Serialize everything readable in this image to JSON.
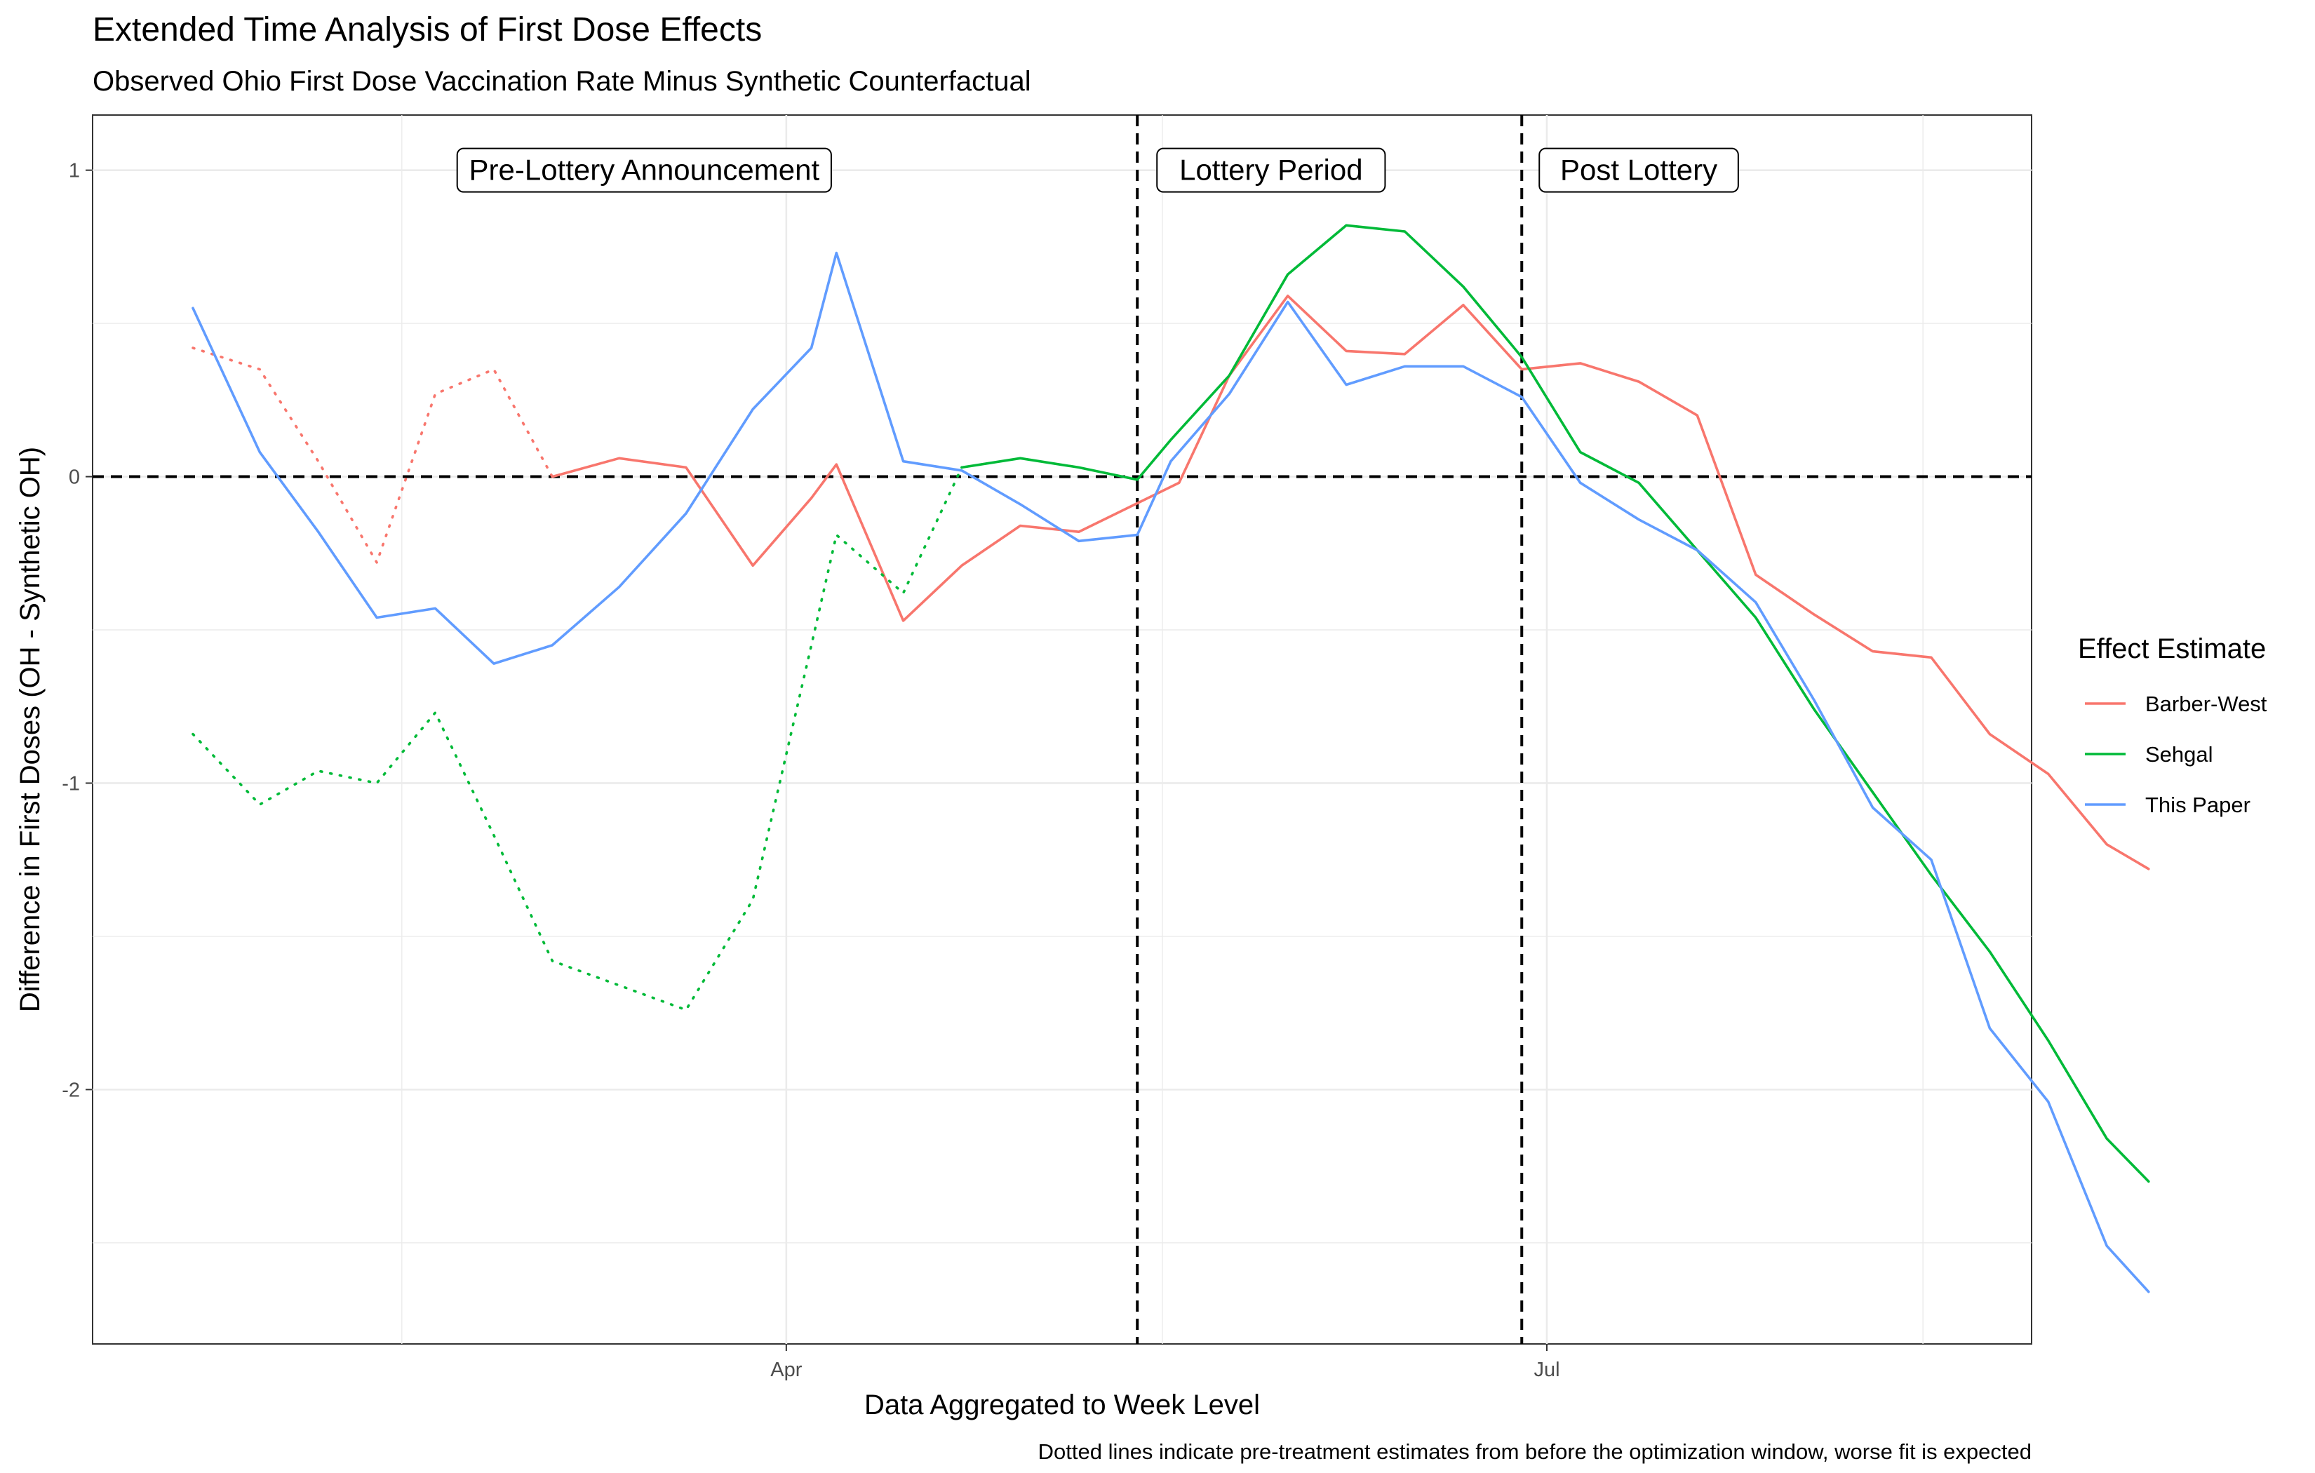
{
  "chart_data": {
    "type": "line",
    "title": "Extended Time Analysis of First Dose Effects",
    "subtitle": "Observed Ohio First Dose Vaccination Rate Minus Synthetic Counterfactual",
    "xlabel": "Data Aggregated to Week Level",
    "ylabel": "Difference in First Doses (OH - Synthetic OH)",
    "caption": "Dotted lines indicate pre-treatment estimates from before the optimization window, worse fit is expected",
    "x_ticks": [
      "Apr",
      "Jul"
    ],
    "y_ticks": [
      "1",
      "0",
      "-1",
      "-2"
    ],
    "ylim": [
      -2.83,
      1.18
    ],
    "xlim": [
      "2021-01-08",
      "2021-08-28"
    ],
    "grid": true,
    "legend": {
      "title": "Effect Estimate",
      "position": "right",
      "entries": [
        "Barber-West",
        "Sehgal",
        "This Paper"
      ]
    },
    "reference_lines": {
      "horizontal_y": 0,
      "vertical_dates": [
        "2021-05-13",
        "2021-06-28"
      ]
    },
    "period_labels": [
      "Pre-Lottery Announcement",
      "Lottery Period",
      "Post Lottery"
    ],
    "series": [
      {
        "name": "Barber-West",
        "color": "#F8766D",
        "segments": [
          {
            "style": "dotted",
            "points": [
              [
                "2021-01-20",
                0.42
              ],
              [
                "2021-01-28",
                0.35
              ],
              [
                "2021-02-04",
                0.05
              ],
              [
                "2021-02-11",
                -0.28
              ],
              [
                "2021-02-18",
                0.27
              ],
              [
                "2021-02-25",
                0.35
              ],
              [
                "2021-03-04",
                0.0
              ]
            ]
          },
          {
            "style": "solid",
            "points": [
              [
                "2021-03-04",
                0.0
              ],
              [
                "2021-03-12",
                0.06
              ],
              [
                "2021-03-20",
                0.03
              ],
              [
                "2021-03-28",
                -0.29
              ],
              [
                "2021-04-04",
                -0.07
              ],
              [
                "2021-04-07",
                0.04
              ],
              [
                "2021-04-15",
                -0.47
              ],
              [
                "2021-04-22",
                -0.29
              ],
              [
                "2021-04-29",
                -0.16
              ],
              [
                "2021-05-06",
                -0.18
              ],
              [
                "2021-05-18",
                -0.02
              ],
              [
                "2021-05-24",
                0.33
              ],
              [
                "2021-05-31",
                0.59
              ],
              [
                "2021-06-07",
                0.41
              ],
              [
                "2021-06-14",
                0.4
              ],
              [
                "2021-06-21",
                0.56
              ],
              [
                "2021-06-28",
                0.35
              ],
              [
                "2021-07-05",
                0.37
              ],
              [
                "2021-07-12",
                0.31
              ],
              [
                "2021-07-19",
                0.2
              ],
              [
                "2021-07-26",
                -0.32
              ],
              [
                "2021-08-02",
                -0.45
              ],
              [
                "2021-08-09",
                -0.57
              ],
              [
                "2021-08-16",
                -0.59
              ],
              [
                "2021-08-23",
                -0.84
              ],
              [
                "2021-08-30",
                -0.97
              ],
              [
                "2021-09-06",
                -1.2
              ],
              [
                "2021-09-11",
                -1.28
              ]
            ]
          }
        ]
      },
      {
        "name": "Sehgal",
        "color": "#00BA38",
        "segments": [
          {
            "style": "dotted",
            "points": [
              [
                "2021-01-20",
                -0.84
              ],
              [
                "2021-01-28",
                -1.07
              ],
              [
                "2021-02-04",
                -0.96
              ],
              [
                "2021-02-11",
                -1.0
              ],
              [
                "2021-02-18",
                -0.77
              ],
              [
                "2021-02-25",
                -1.17
              ],
              [
                "2021-03-04",
                -1.58
              ],
              [
                "2021-03-12",
                -1.66
              ],
              [
                "2021-03-20",
                -1.74
              ],
              [
                "2021-03-28",
                -1.38
              ],
              [
                "2021-04-04",
                -0.55
              ],
              [
                "2021-04-07",
                -0.19
              ],
              [
                "2021-04-15",
                -0.38
              ],
              [
                "2021-04-22",
                0.03
              ]
            ]
          },
          {
            "style": "solid",
            "points": [
              [
                "2021-04-22",
                0.03
              ],
              [
                "2021-04-29",
                0.06
              ],
              [
                "2021-05-06",
                0.03
              ],
              [
                "2021-05-13",
                -0.01
              ],
              [
                "2021-05-17",
                0.12
              ],
              [
                "2021-05-24",
                0.33
              ],
              [
                "2021-05-31",
                0.66
              ],
              [
                "2021-06-07",
                0.82
              ],
              [
                "2021-06-14",
                0.8
              ],
              [
                "2021-06-21",
                0.62
              ],
              [
                "2021-06-28",
                0.39
              ],
              [
                "2021-07-05",
                0.08
              ],
              [
                "2021-07-12",
                -0.02
              ],
              [
                "2021-07-19",
                -0.24
              ],
              [
                "2021-07-26",
                -0.46
              ],
              [
                "2021-08-02",
                -0.76
              ],
              [
                "2021-08-09",
                -1.03
              ],
              [
                "2021-08-16",
                -1.3
              ],
              [
                "2021-08-23",
                -1.55
              ],
              [
                "2021-08-30",
                -1.84
              ],
              [
                "2021-09-06",
                -2.16
              ],
              [
                "2021-09-11",
                -2.3
              ]
            ]
          }
        ]
      },
      {
        "name": "This Paper",
        "color": "#619CFF",
        "segments": [
          {
            "style": "solid",
            "points": [
              [
                "2021-01-20",
                0.55
              ],
              [
                "2021-01-28",
                0.08
              ],
              [
                "2021-02-04",
                -0.18
              ],
              [
                "2021-02-11",
                -0.46
              ],
              [
                "2021-02-18",
                -0.43
              ],
              [
                "2021-02-25",
                -0.61
              ],
              [
                "2021-03-04",
                -0.55
              ],
              [
                "2021-03-12",
                -0.36
              ],
              [
                "2021-03-20",
                -0.12
              ],
              [
                "2021-03-28",
                0.22
              ],
              [
                "2021-04-04",
                0.42
              ],
              [
                "2021-04-07",
                0.73
              ],
              [
                "2021-04-15",
                0.05
              ],
              [
                "2021-04-22",
                0.02
              ],
              [
                "2021-04-29",
                -0.09
              ],
              [
                "2021-05-06",
                -0.21
              ],
              [
                "2021-05-13",
                -0.19
              ],
              [
                "2021-05-17",
                0.05
              ],
              [
                "2021-05-24",
                0.27
              ],
              [
                "2021-05-31",
                0.57
              ],
              [
                "2021-06-07",
                0.3
              ],
              [
                "2021-06-14",
                0.36
              ],
              [
                "2021-06-21",
                0.36
              ],
              [
                "2021-06-28",
                0.26
              ],
              [
                "2021-07-05",
                -0.02
              ],
              [
                "2021-07-12",
                -0.14
              ],
              [
                "2021-07-19",
                -0.24
              ],
              [
                "2021-07-26",
                -0.41
              ],
              [
                "2021-08-02",
                -0.73
              ],
              [
                "2021-08-09",
                -1.08
              ],
              [
                "2021-08-16",
                -1.25
              ],
              [
                "2021-08-23",
                -1.8
              ],
              [
                "2021-08-30",
                -2.04
              ],
              [
                "2021-09-06",
                -2.51
              ],
              [
                "2021-09-11",
                -2.66
              ]
            ]
          }
        ]
      }
    ]
  }
}
